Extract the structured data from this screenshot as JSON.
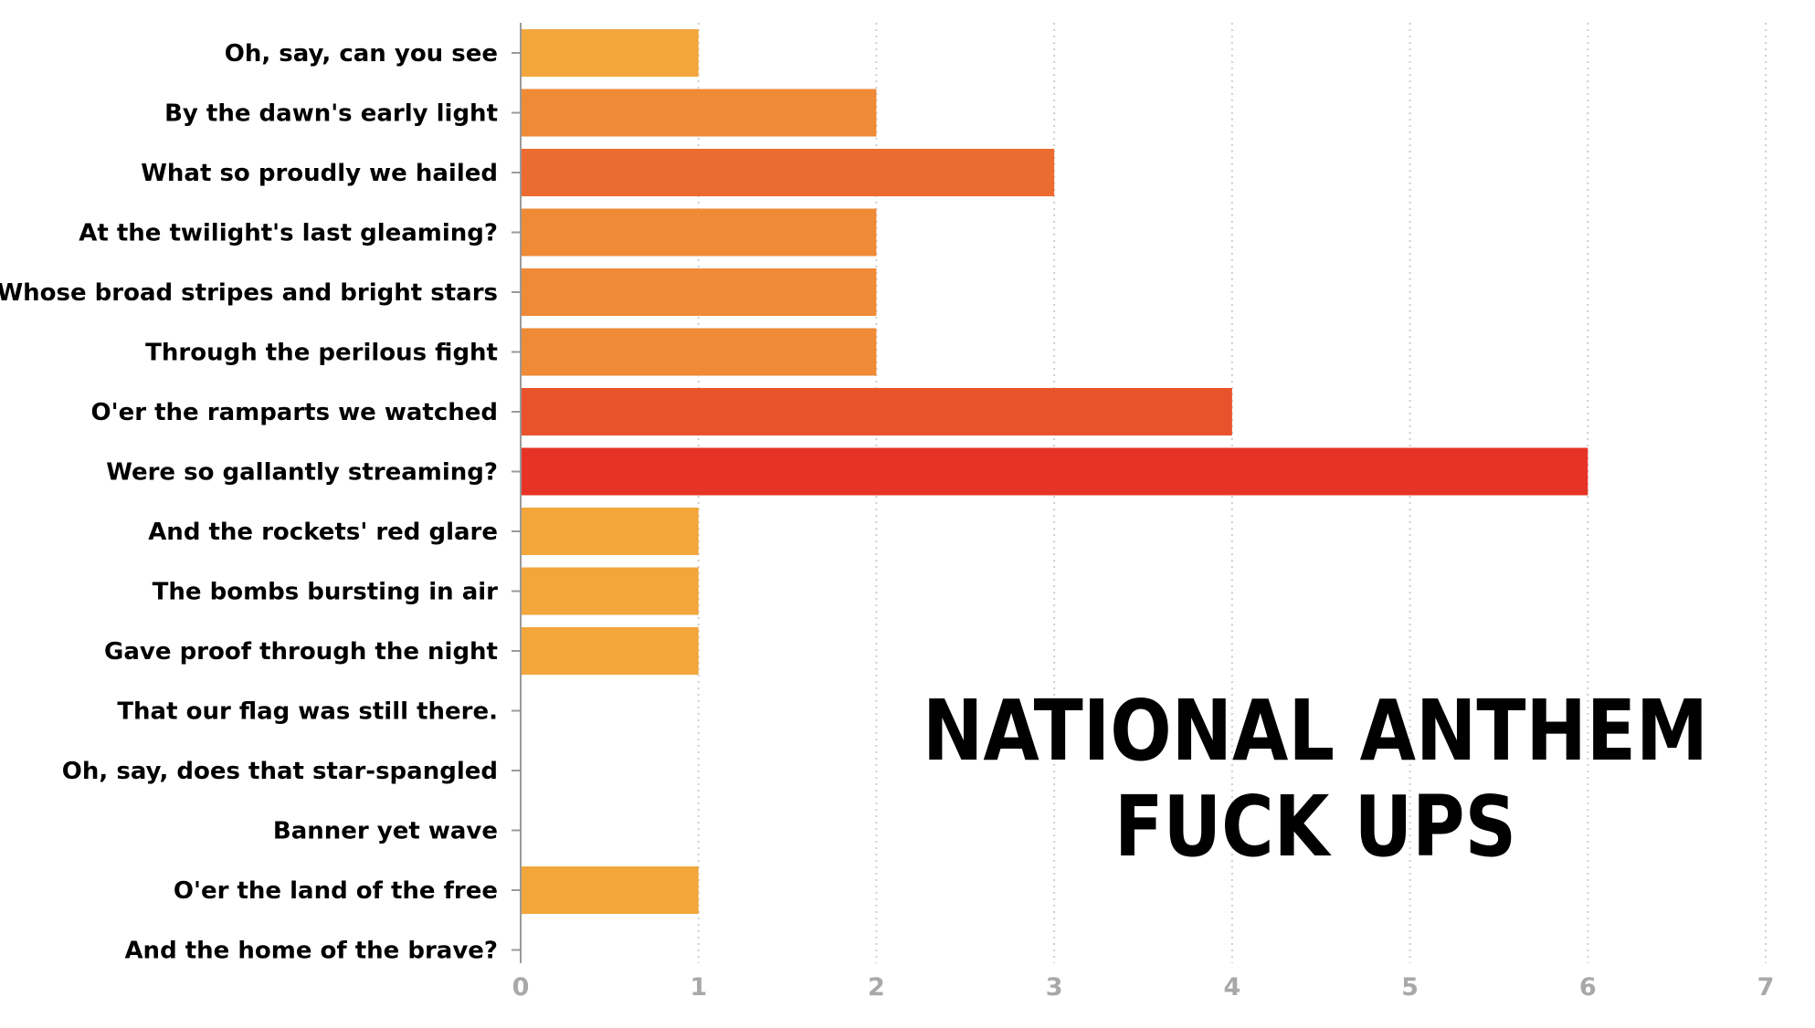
{
  "chart_data": {
    "type": "bar",
    "orientation": "horizontal",
    "title_lines": [
      "NATIONAL ANTHEM",
      "FUCK UPS"
    ],
    "xlabel": "",
    "ylabel": "",
    "xlim": [
      0,
      7
    ],
    "x_ticks": [
      "0",
      "1",
      "2",
      "3",
      "4",
      "5",
      "6",
      "7"
    ],
    "grid": "vertical dotted",
    "legend": "none",
    "categories": [
      "Oh, say, can you see",
      "By the dawn's early light",
      "What so proudly we hailed",
      "At the twilight's last gleaming?",
      "Whose broad stripes and bright stars",
      "Through the perilous fight",
      "O'er the ramparts we watched",
      "Were so gallantly streaming?",
      "And the rockets' red glare",
      "The bombs bursting in air",
      "Gave proof through the night",
      "That our flag was still there.",
      "Oh, say, does that star-spangled ",
      "Banner yet wave",
      "O'er the land of the free ",
      "And the home of the brave?"
    ],
    "values": [
      1,
      2,
      3,
      2,
      2,
      2,
      4,
      6,
      1,
      1,
      1,
      0,
      0,
      0,
      1,
      0
    ],
    "colors": {
      "1": "#f2a63b",
      "2": "#ef8a37",
      "3": "#ec6b30",
      "4": "#e8532c",
      "6": "#e63326"
    },
    "axis_color": "#9a9a9a",
    "grid_color": "#cfcfcf"
  }
}
